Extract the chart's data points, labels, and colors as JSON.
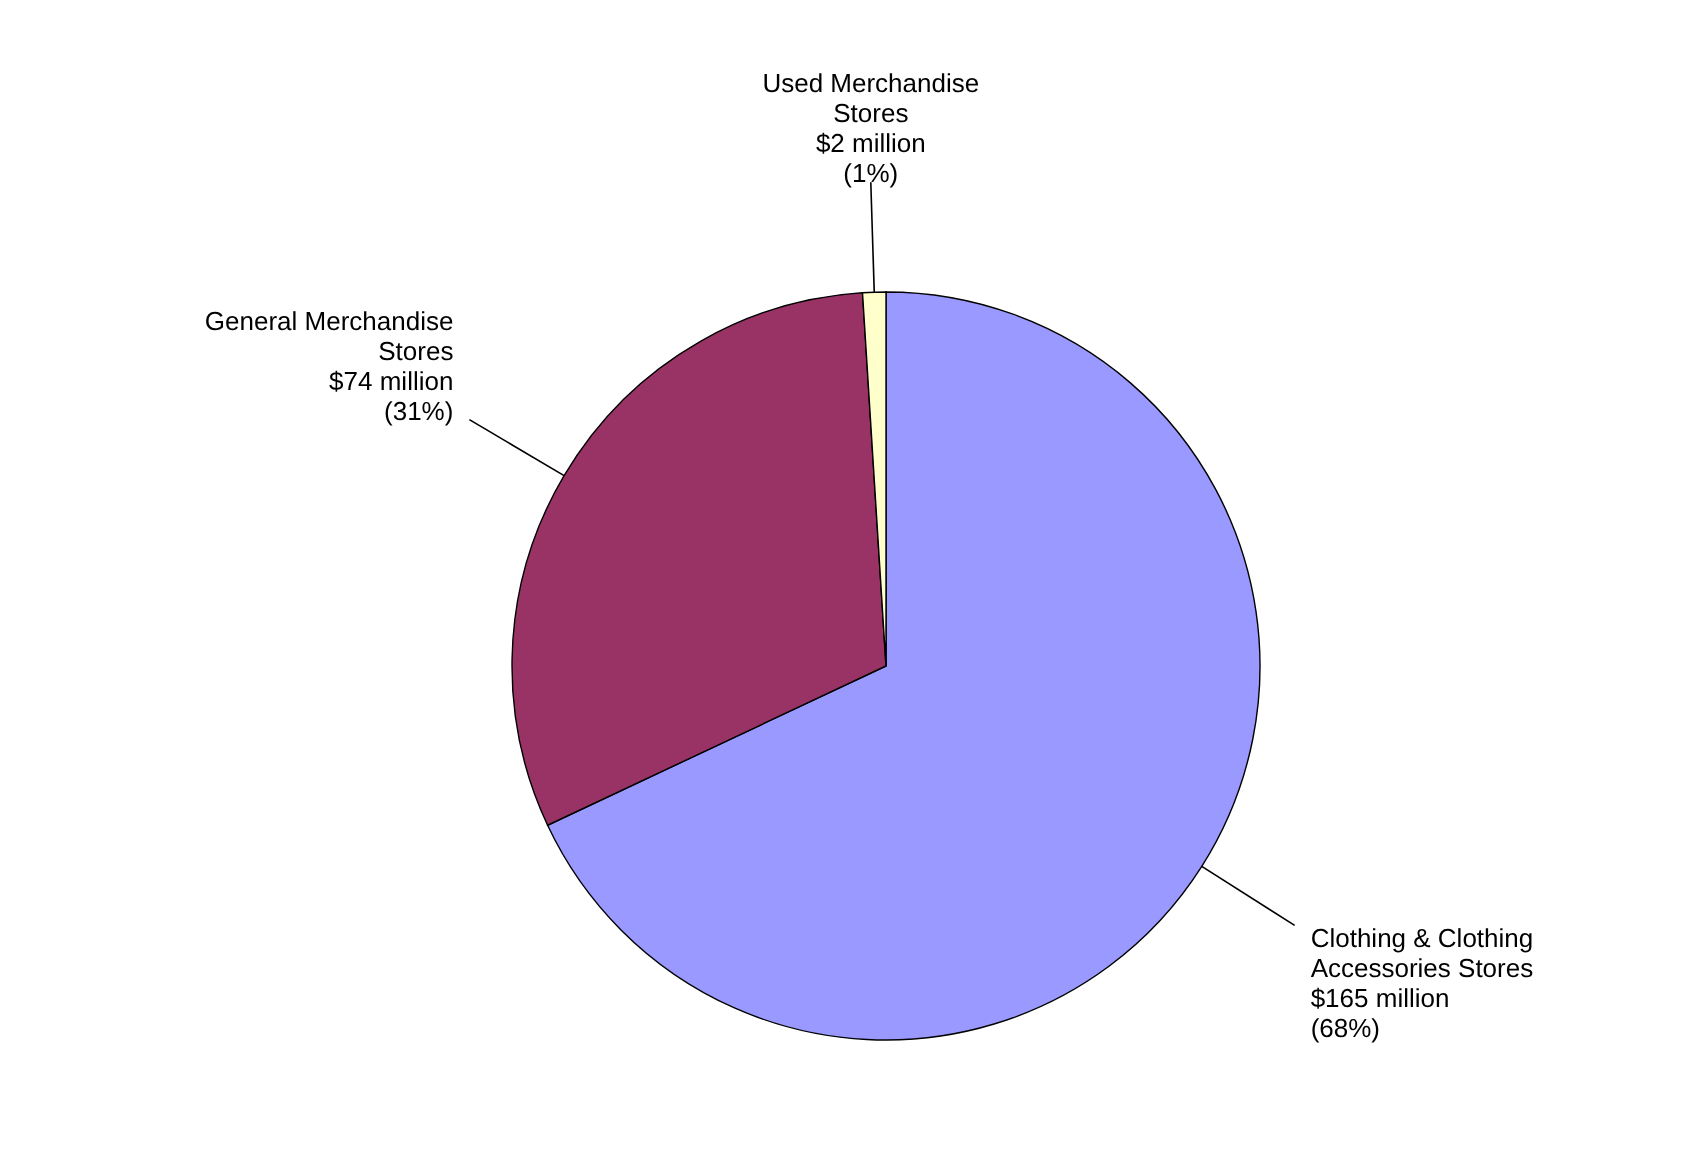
{
  "chart_data": {
    "type": "pie",
    "categories": [
      "Clothing & Clothing Accessories Stores",
      "General Merchandise Stores",
      "Used Merchandise Stores"
    ],
    "values": [
      68,
      31,
      1
    ],
    "value_labels": [
      "$165 million (68%)",
      "$74 million (31%)",
      "$2 million (1%)"
    ],
    "colors": [
      "#9999ff",
      "#993366",
      "#ffffcc"
    ]
  }
}
